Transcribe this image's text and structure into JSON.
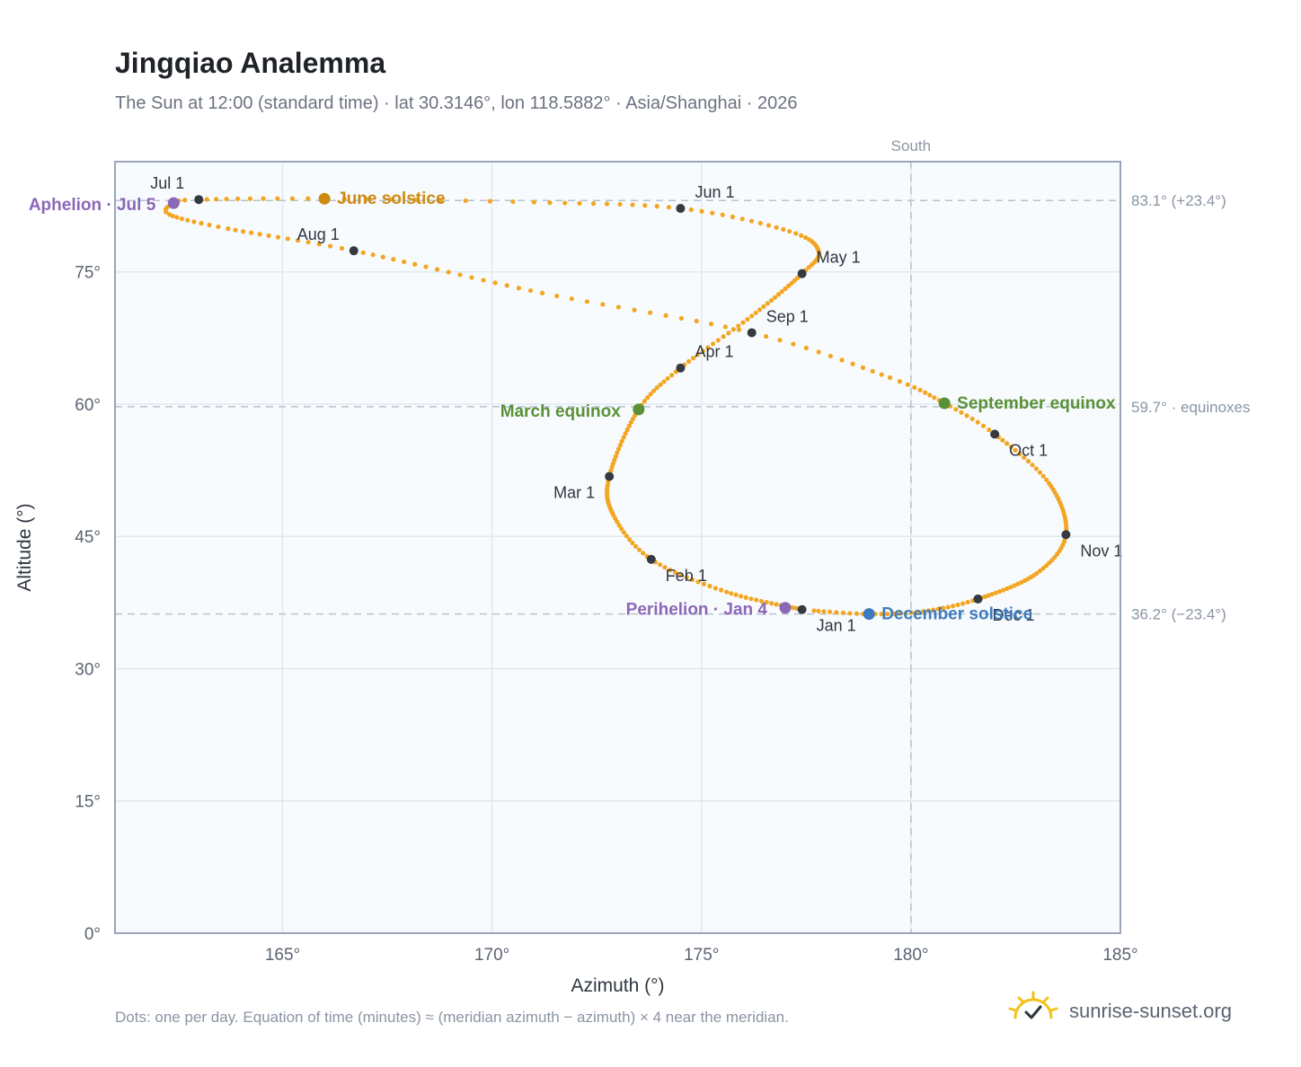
{
  "title": "Jingqiao Analemma",
  "subtitle": "The Sun at 12:00 (standard time) · lat 30.3146°, lon 118.5882° · Asia/Shanghai · 2026",
  "footnote": "Dots: one per day. Equation of time (minutes) ≈ (meridian azimuth − azimuth) × 4 near the meridian.",
  "brand": {
    "name": "sunrise-sunset.org",
    "icon": "sun-logo-icon"
  },
  "colors": {
    "curve": "#f2a623",
    "month": "#343a40",
    "june_solstice": "#cc8a12",
    "december_solstice": "#3d7bbf",
    "equinox": "#5a9138",
    "apsis": "#8b67b8",
    "grid": "#e2e8f0",
    "frame": "#9aa6b6",
    "refline": "#b7c2ce",
    "plot_bg": "#f8fbfd"
  },
  "chart_data": {
    "type": "scatter",
    "xlabel": "Azimuth (°)",
    "ylabel": "Altitude (°)",
    "xlim": [
      161,
      185
    ],
    "ylim": [
      0,
      87.5
    ],
    "x_ticks": [
      165,
      170,
      175,
      180,
      185
    ],
    "y_ticks": [
      0,
      15,
      30,
      45,
      60,
      75
    ],
    "x_tick_labels": [
      "165°",
      "170°",
      "175°",
      "180°",
      "185°"
    ],
    "y_tick_labels": [
      "0°",
      "15°",
      "30°",
      "45°",
      "60°",
      "75°"
    ],
    "grid": true,
    "south_azimuth": 180,
    "south_label": "South",
    "reference_lines": [
      {
        "altitude": 83.1,
        "label": "83.1° (+23.4°)"
      },
      {
        "altitude": 59.7,
        "label": "59.7° · equinoxes"
      },
      {
        "altitude": 36.2,
        "label": "36.2° (−23.4°)"
      }
    ],
    "path_description_days": "one dot per day",
    "path": [
      {
        "day": 1,
        "azimuth": 177.4,
        "altitude": 36.7
      },
      {
        "day": 18,
        "azimuth": 175.6,
        "altitude": 38.7
      },
      {
        "day": 32,
        "azimuth": 173.8,
        "altitude": 42.4
      },
      {
        "day": 45,
        "azimuth": 172.9,
        "altitude": 47.4
      },
      {
        "day": 60,
        "azimuth": 172.8,
        "altitude": 51.8
      },
      {
        "day": 79,
        "azimuth": 173.5,
        "altitude": 59.4
      },
      {
        "day": 91,
        "azimuth": 174.5,
        "altitude": 64.1
      },
      {
        "day": 106,
        "azimuth": 176.2,
        "altitude": 70.0
      },
      {
        "day": 121,
        "azimuth": 177.4,
        "altitude": 74.8
      },
      {
        "day": 130,
        "azimuth": 177.8,
        "altitude": 77.3
      },
      {
        "day": 140,
        "azimuth": 177.1,
        "altitude": 79.6
      },
      {
        "day": 152,
        "azimuth": 174.5,
        "altitude": 82.2
      },
      {
        "day": 163,
        "azimuth": 171.0,
        "altitude": 82.9
      },
      {
        "day": 172,
        "azimuth": 166.0,
        "altitude": 83.3
      },
      {
        "day": 182,
        "azimuth": 163.0,
        "altitude": 83.2
      },
      {
        "day": 186,
        "azimuth": 162.4,
        "altitude": 82.8
      },
      {
        "day": 191,
        "azimuth": 162.3,
        "altitude": 81.5
      },
      {
        "day": 200,
        "azimuth": 163.7,
        "altitude": 79.9
      },
      {
        "day": 213,
        "azimuth": 166.7,
        "altitude": 77.4
      },
      {
        "day": 230,
        "azimuth": 171.2,
        "altitude": 72.6
      },
      {
        "day": 244,
        "azimuth": 176.2,
        "altitude": 68.1
      },
      {
        "day": 256,
        "azimuth": 179.5,
        "altitude": 63.0
      },
      {
        "day": 265,
        "azimuth": 180.8,
        "altitude": 60.1
      },
      {
        "day": 274,
        "azimuth": 182.0,
        "altitude": 56.6
      },
      {
        "day": 288,
        "azimuth": 183.3,
        "altitude": 51.0
      },
      {
        "day": 305,
        "azimuth": 183.7,
        "altitude": 45.2
      },
      {
        "day": 318,
        "azimuth": 183.0,
        "altitude": 40.8
      },
      {
        "day": 335,
        "azimuth": 181.6,
        "altitude": 37.9
      },
      {
        "day": 346,
        "azimuth": 180.3,
        "altitude": 36.5
      },
      {
        "day": 355,
        "azimuth": 179.0,
        "altitude": 36.2
      },
      {
        "day": 365,
        "azimuth": 177.6,
        "altitude": 36.6
      }
    ],
    "month_markers": [
      {
        "label": "Jan 1",
        "azimuth": 177.4,
        "altitude": 36.7,
        "anchor": "below-right"
      },
      {
        "label": "Feb 1",
        "azimuth": 173.8,
        "altitude": 42.4,
        "anchor": "below-right"
      },
      {
        "label": "Mar 1",
        "azimuth": 172.8,
        "altitude": 51.8,
        "anchor": "below-left"
      },
      {
        "label": "Apr 1",
        "azimuth": 174.5,
        "altitude": 64.1,
        "anchor": "above-right"
      },
      {
        "label": "May 1",
        "azimuth": 177.4,
        "altitude": 74.8,
        "anchor": "above-right"
      },
      {
        "label": "Jun 1",
        "azimuth": 174.5,
        "altitude": 82.2,
        "anchor": "above-right"
      },
      {
        "label": "Jul 1",
        "azimuth": 163.0,
        "altitude": 83.2,
        "anchor": "above-left"
      },
      {
        "label": "Aug 1",
        "azimuth": 166.7,
        "altitude": 77.4,
        "anchor": "above-left"
      },
      {
        "label": "Sep 1",
        "azimuth": 176.2,
        "altitude": 68.1,
        "anchor": "above-right"
      },
      {
        "label": "Oct 1",
        "azimuth": 182.0,
        "altitude": 56.6,
        "anchor": "below-right"
      },
      {
        "label": "Nov 1",
        "azimuth": 183.7,
        "altitude": 45.2,
        "anchor": "below-right"
      },
      {
        "label": "Dec 1",
        "azimuth": 181.6,
        "altitude": 37.9,
        "anchor": "below-right"
      }
    ],
    "events": [
      {
        "label": "June solstice",
        "azimuth": 166.0,
        "altitude": 83.3,
        "color_key": "june_solstice",
        "anchor": "right"
      },
      {
        "label": "December solstice",
        "azimuth": 179.0,
        "altitude": 36.2,
        "color_key": "december_solstice",
        "anchor": "right"
      },
      {
        "label": "March equinox",
        "azimuth": 173.5,
        "altitude": 59.4,
        "color_key": "equinox",
        "anchor": "left"
      },
      {
        "label": "September equinox",
        "azimuth": 180.8,
        "altitude": 60.1,
        "color_key": "equinox",
        "anchor": "right"
      },
      {
        "label": "Aphelion · Jul 5",
        "azimuth": 162.4,
        "altitude": 82.8,
        "color_key": "apsis",
        "anchor": "left"
      },
      {
        "label": "Perihelion · Jan 4",
        "azimuth": 177.0,
        "altitude": 36.9,
        "color_key": "apsis",
        "anchor": "left"
      }
    ]
  }
}
